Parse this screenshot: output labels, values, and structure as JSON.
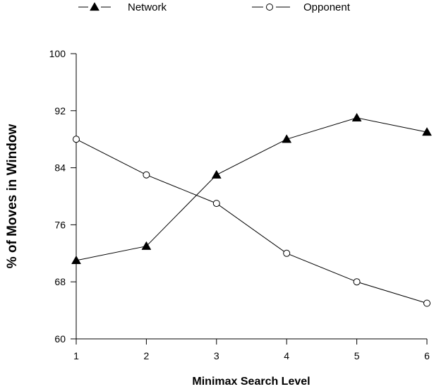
{
  "chart_data": {
    "type": "line",
    "xlabel": "Minimax Search Level",
    "ylabel": "% of Moves in Window",
    "x": [
      1,
      2,
      3,
      4,
      5,
      6
    ],
    "xlim": [
      1,
      6
    ],
    "ylim": [
      60,
      100
    ],
    "y_ticks": [
      60,
      68,
      76,
      84,
      92,
      100
    ],
    "grid": false,
    "legend_position": "top",
    "series": [
      {
        "name": "Network",
        "marker": "filled-triangle",
        "color": "#000000",
        "values": [
          71,
          73,
          83,
          88,
          91,
          89
        ]
      },
      {
        "name": "Opponent",
        "marker": "open-circle",
        "color": "#000000",
        "values": [
          88,
          83,
          79,
          72,
          68,
          65
        ]
      }
    ]
  }
}
